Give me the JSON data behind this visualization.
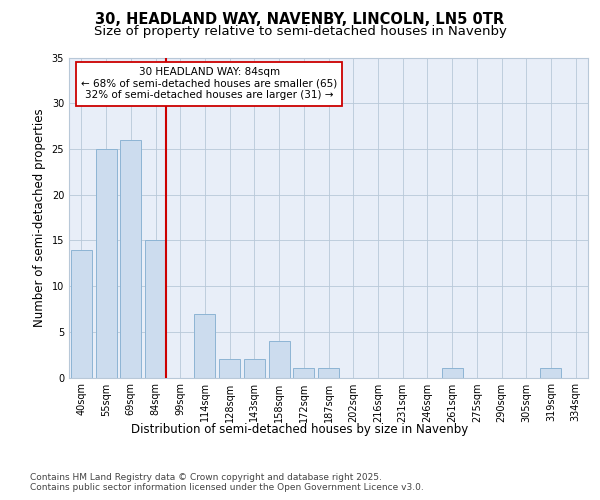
{
  "title_line1": "30, HEADLAND WAY, NAVENBY, LINCOLN, LN5 0TR",
  "title_line2": "Size of property relative to semi-detached houses in Navenby",
  "xlabel": "Distribution of semi-detached houses by size in Navenby",
  "ylabel": "Number of semi-detached properties",
  "categories": [
    "40sqm",
    "55sqm",
    "69sqm",
    "84sqm",
    "99sqm",
    "114sqm",
    "128sqm",
    "143sqm",
    "158sqm",
    "172sqm",
    "187sqm",
    "202sqm",
    "216sqm",
    "231sqm",
    "246sqm",
    "261sqm",
    "275sqm",
    "290sqm",
    "305sqm",
    "319sqm",
    "334sqm"
  ],
  "values": [
    14,
    25,
    26,
    15,
    0,
    7,
    2,
    2,
    4,
    1,
    1,
    0,
    0,
    0,
    0,
    1,
    0,
    0,
    0,
    1,
    0
  ],
  "bar_color": "#ccdcee",
  "bar_edge_color": "#8db4d4",
  "highlight_index": 3,
  "highlight_line_color": "#cc0000",
  "annotation_text": "30 HEADLAND WAY: 84sqm\n← 68% of semi-detached houses are smaller (65)\n32% of semi-detached houses are larger (31) →",
  "annotation_box_color": "#ffffff",
  "annotation_box_edge_color": "#cc0000",
  "ylim": [
    0,
    35
  ],
  "yticks": [
    0,
    5,
    10,
    15,
    20,
    25,
    30,
    35
  ],
  "background_color": "#e8eef8",
  "plot_background_color": "#e8eef8",
  "footer_text": "Contains HM Land Registry data © Crown copyright and database right 2025.\nContains public sector information licensed under the Open Government Licence v3.0.",
  "title_fontsize": 10.5,
  "subtitle_fontsize": 9.5,
  "tick_fontsize": 7,
  "label_fontsize": 8.5,
  "footer_fontsize": 6.5,
  "annotation_fontsize": 7.5
}
